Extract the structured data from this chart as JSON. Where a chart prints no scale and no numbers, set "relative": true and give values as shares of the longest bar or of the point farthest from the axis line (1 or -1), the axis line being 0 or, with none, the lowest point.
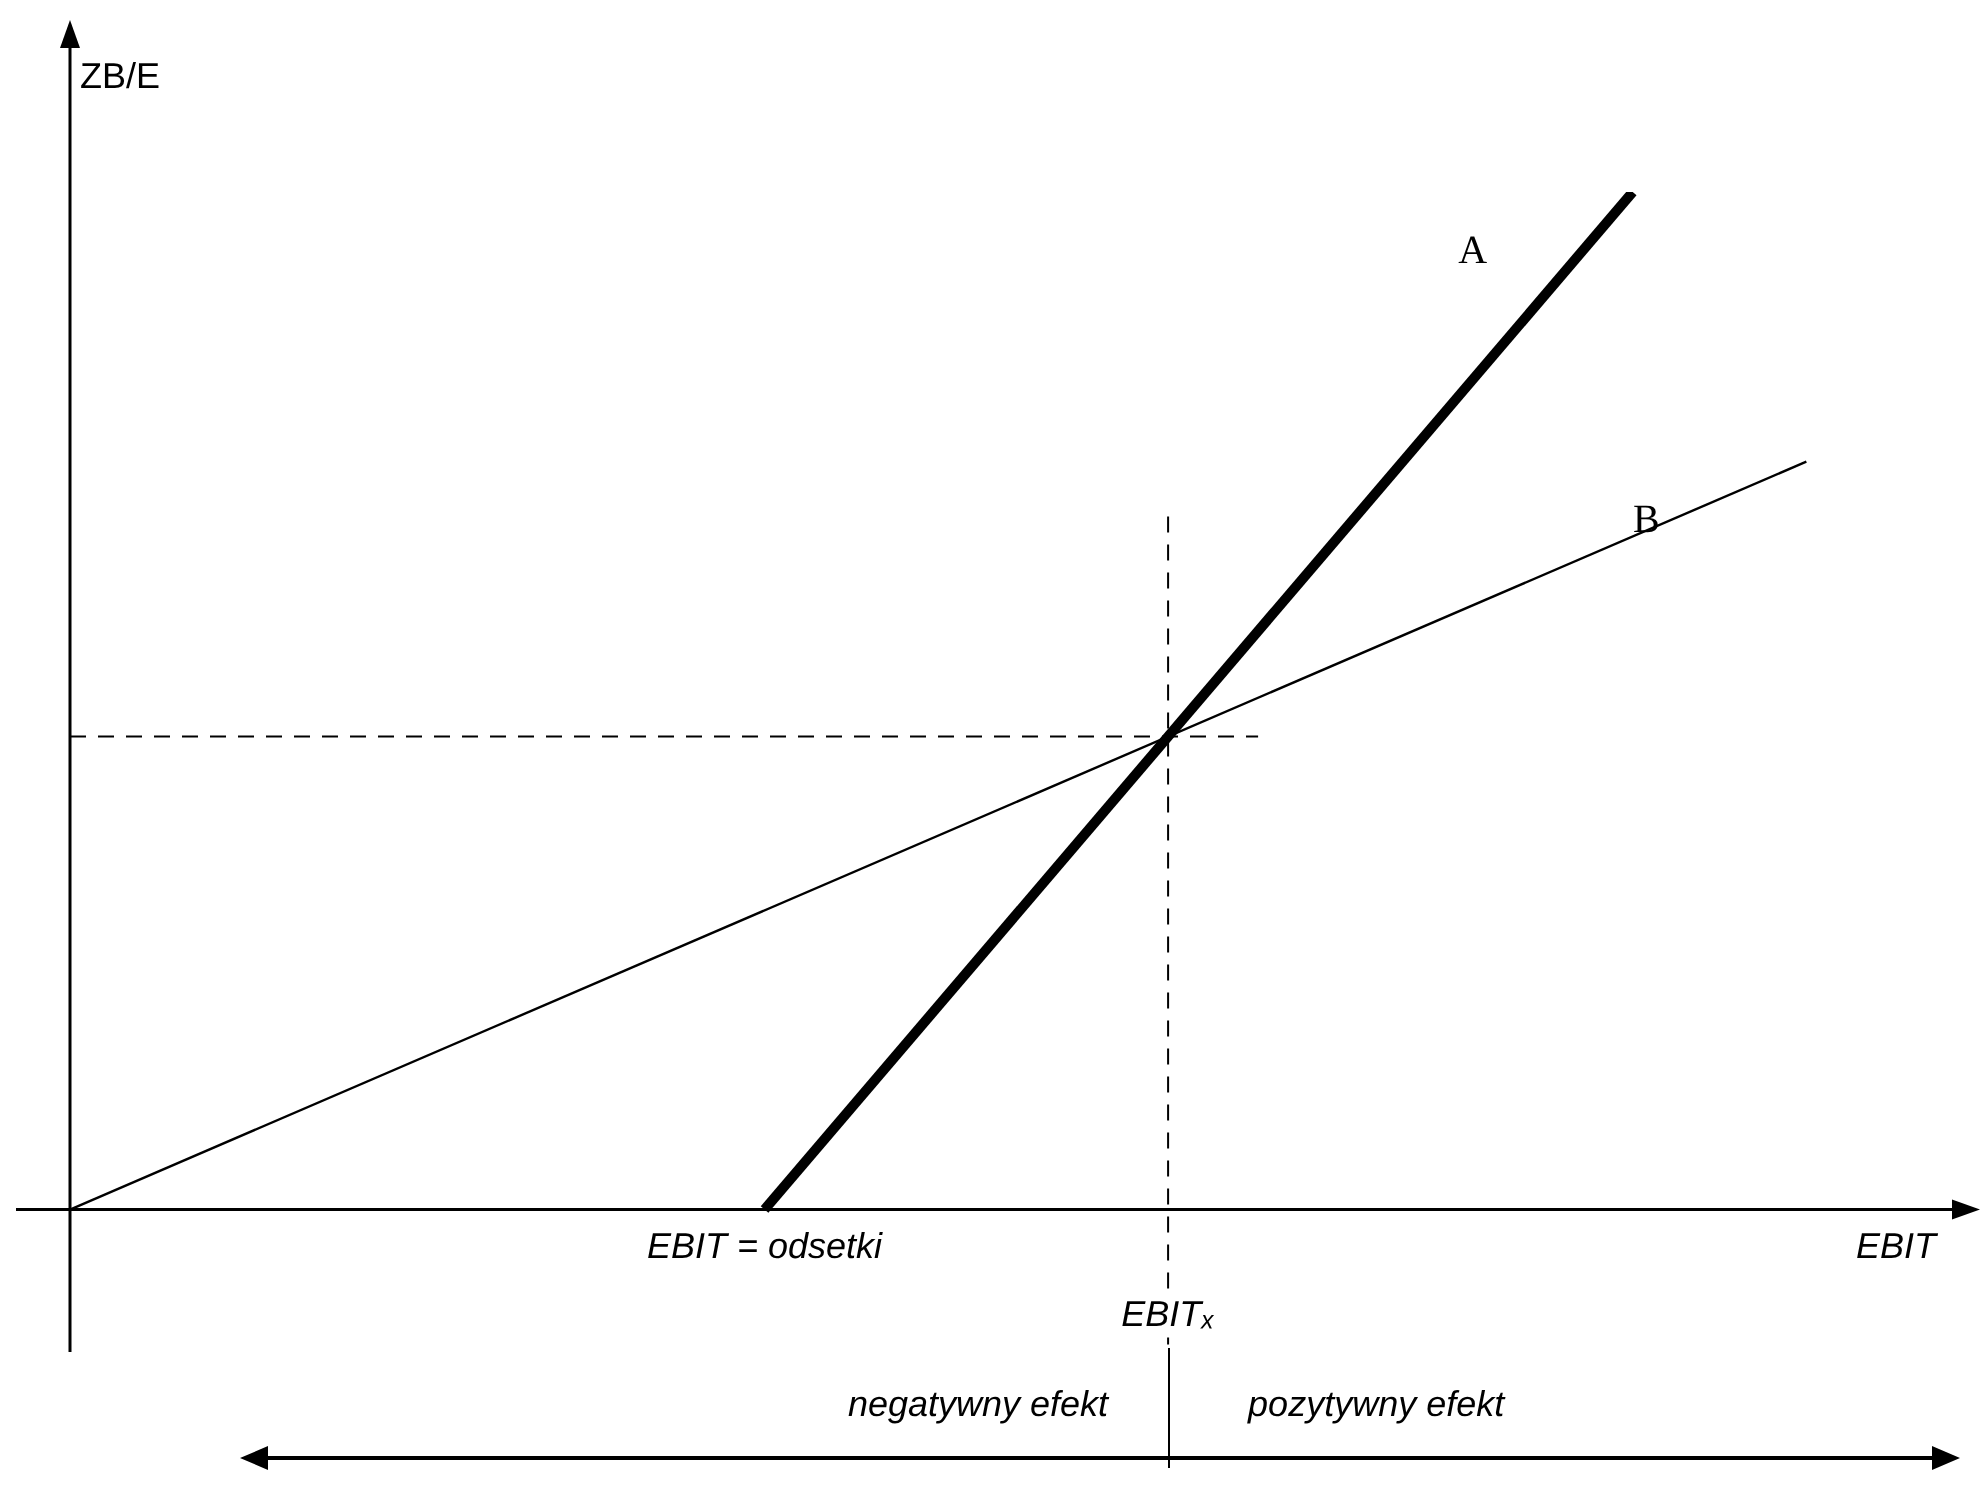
{
  "chart_data": {
    "type": "line",
    "relative": true,
    "xlabel": "EBIT",
    "ylabel": "ZB/E",
    "legend": false,
    "marker": "none",
    "categories": [
      null,
      null,
      null,
      null,
      null,
      null,
      null,
      null,
      null,
      null,
      null,
      null
    ],
    "series": [
      {
        "name": "A",
        "color": "#000000",
        "values": [
          null,
          null,
          null,
          null,
          0,
          null,
          null,
          null,
          null,
          1,
          null,
          null
        ]
      },
      {
        "name": "B",
        "color": "#000000",
        "values": [
          0,
          null,
          null,
          null,
          null,
          null,
          null,
          null,
          null,
          null,
          0.735,
          null
        ]
      }
    ],
    "ref_lines": [
      {
        "axis": "y",
        "value": 0.465,
        "line_style": "dashed"
      }
    ],
    "annotations": [
      "EBIT = odsetki",
      "EBITₓ",
      "negatywny efekt",
      "pozytywny efekt"
    ]
  }
}
